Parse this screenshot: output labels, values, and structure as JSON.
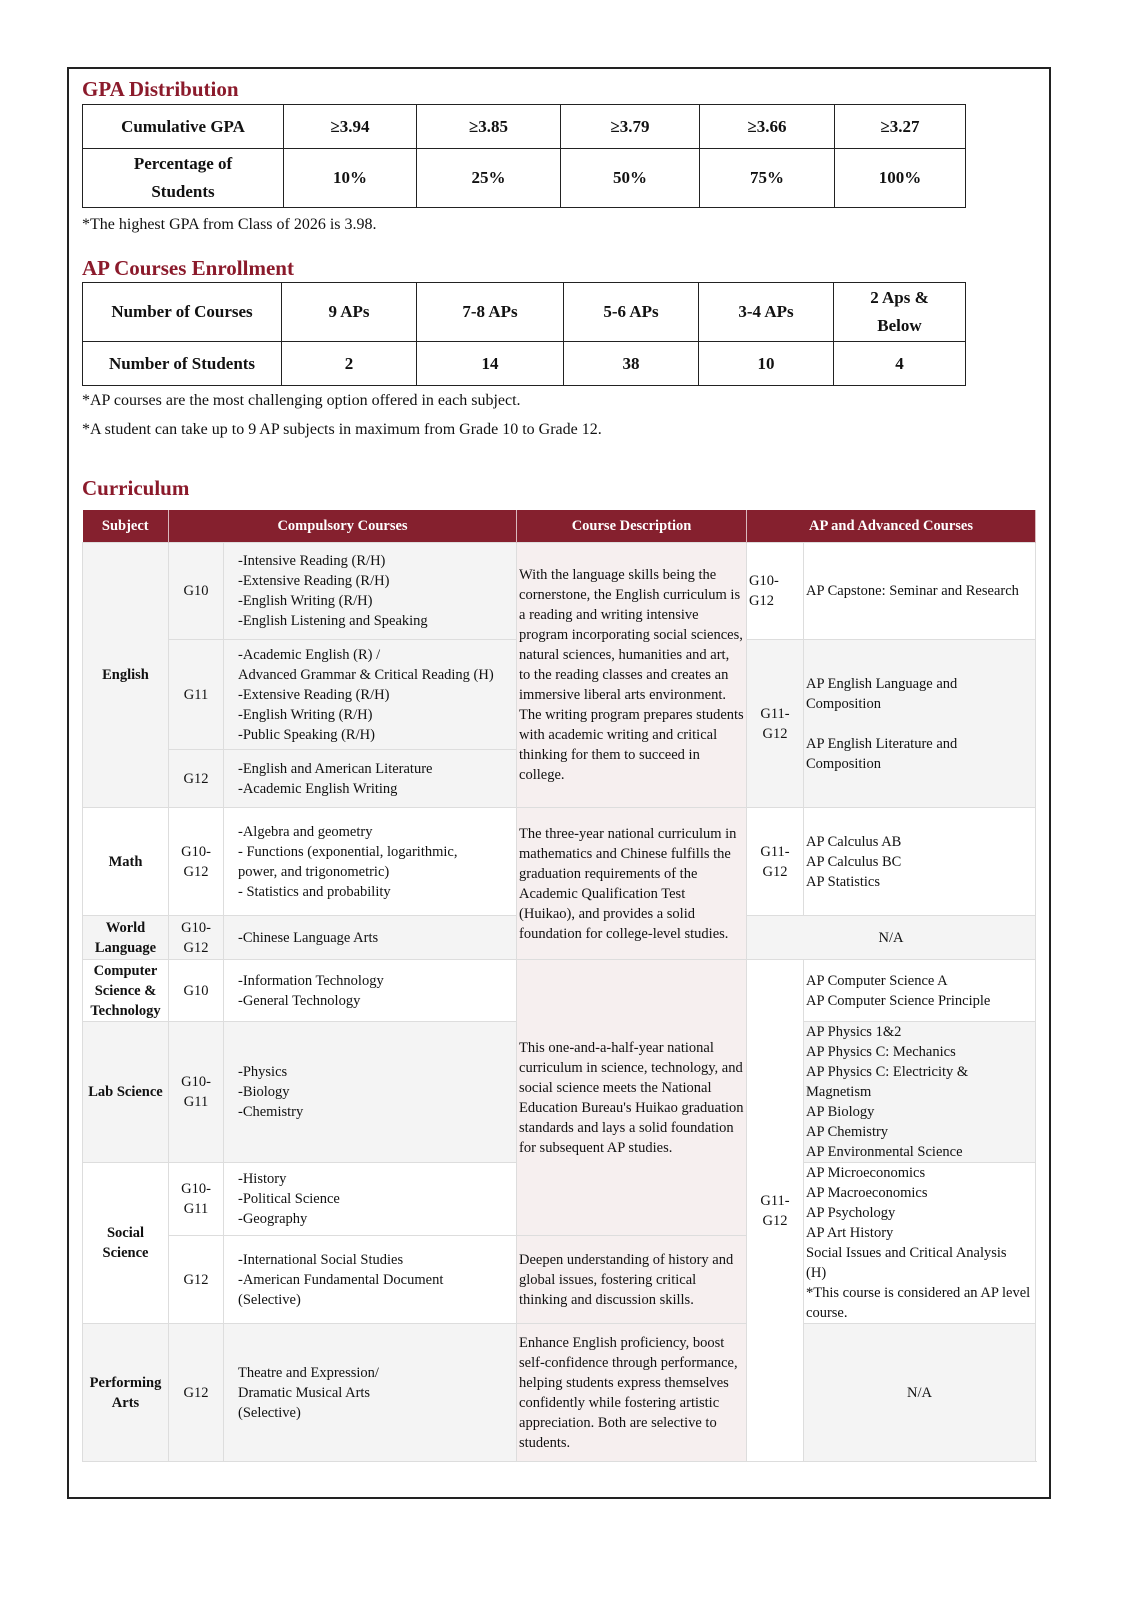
{
  "gpa": {
    "title": "GPA Distribution",
    "row1": [
      "Cumulative GPA",
      "≥3.94",
      "≥3.85",
      "≥3.79",
      "≥3.66",
      "≥3.27"
    ],
    "row2": [
      "Percentage of\nStudents",
      "10%",
      "25%",
      "50%",
      "75%",
      "100%"
    ],
    "note": "*The highest GPA from Class of 2026 is 3.98."
  },
  "ap": {
    "title": "AP Courses Enrollment",
    "row1": [
      "Number of Courses",
      "9 APs",
      "7-8 APs",
      "5-6 APs",
      "3-4 APs",
      "2 Aps &\nBelow"
    ],
    "row2": [
      "Number of Students",
      "2",
      "14",
      "38",
      "10",
      "4"
    ],
    "notes": [
      "*AP courses are the most challenging option offered in each subject.",
      "*A student can take up to 9 AP subjects in maximum from Grade 10 to Grade 12."
    ]
  },
  "curriculum": {
    "title": "Curriculum",
    "headers": [
      "Subject",
      "Compulsory Courses",
      "Course Description",
      "AP  and Advanced Courses"
    ],
    "english": {
      "subject": "English",
      "g10": {
        "grade": "G10",
        "courses": "-Intensive Reading (R/H)\n-Extensive Reading (R/H)\n-English Writing (R/H)\n-English Listening and Speaking"
      },
      "g11": {
        "grade": "G11",
        "courses": "-Academic English (R) /\nAdvanced Grammar & Critical Reading (H)\n-Extensive Reading (R/H)\n-English Writing (R/H)\n-Public Speaking (R/H)"
      },
      "g12": {
        "grade": "G12",
        "courses": "-English and American Literature\n-Academic English Writing"
      },
      "description": "With the language skills being the cornerstone, the English curriculum is a reading and writing intensive program incorporating social sciences, natural sciences, humanities and art, to the reading classes and creates an immersive liberal arts environment. The writing program prepares students with academic writing and critical thinking for them to succeed in college.",
      "ap1": {
        "grade": "G10-\nG12",
        "courses": "AP Capstone: Seminar and Research"
      },
      "ap2": {
        "grade": "G11-\nG12",
        "courses": "AP English Language and\nComposition\n\nAP English Literature and\nComposition"
      }
    },
    "math": {
      "subject": "Math",
      "grade": "G10-\nG12",
      "courses": "-Algebra and geometry\n- Functions (exponential, logarithmic,\npower, and trigonometric)\n- Statistics and probability",
      "description": "The three-year national curriculum in mathematics and Chinese fulfills the graduation requirements of the Academic Qualification Test (Huikao), and provides a solid foundation for college-level studies.",
      "ap_grade": "G11-\nG12",
      "ap_courses": "AP Calculus AB\nAP Calculus BC\nAP Statistics"
    },
    "world": {
      "subject": "World\nLanguage",
      "grade": "G10-\nG12",
      "courses": "-Chinese Language Arts",
      "ap": "N/A"
    },
    "cs": {
      "subject": "Computer\nScience &\nTechnology",
      "grade": "G10",
      "courses": "-Information Technology\n-General Technology",
      "ap_courses": "AP Computer Science A\nAP Computer Science Principle"
    },
    "lab": {
      "subject": "Lab Science",
      "grade": "G10-\nG11",
      "courses": "-Physics\n-Biology\n-Chemistry",
      "ap_courses": "AP Physics 1&2\nAP Physics C: Mechanics\nAP Physics C: Electricity &\nMagnetism\nAP Biology\nAP Chemistry\nAP Environmental Science"
    },
    "science_description": "This one-and-a-half-year national curriculum in science, technology, and social science meets the National Education Bureau's Huikao graduation standards and lays a solid foundation for subsequent AP studies.",
    "sci_ap_grade": "G11-\nG12",
    "social": {
      "subject": "Social\nScience",
      "g1011": {
        "grade": "G10-\nG11",
        "courses": "-History\n-Political Science\n-Geography"
      },
      "g12": {
        "grade": "G12",
        "courses": "-International Social Studies\n-American Fundamental Document\n(Selective)",
        "description": "Deepen understanding of history and global issues, fostering critical thinking and discussion skills."
      },
      "ap_courses": "AP Microeconomics\nAP Macroeconomics\nAP Psychology\nAP Art History\nSocial Issues and Critical Analysis\n(H)\n    *This course is considered an AP level course."
    },
    "perf": {
      "subject": "Performing\nArts",
      "grade": "G12",
      "courses": "Theatre and Expression/\nDramatic Musical Arts\n(Selective)",
      "description": "Enhance English proficiency, boost self-confidence through performance, helping students express themselves confidently while fostering artistic appreciation. Both are selective to students.",
      "ap": "N/A"
    }
  }
}
